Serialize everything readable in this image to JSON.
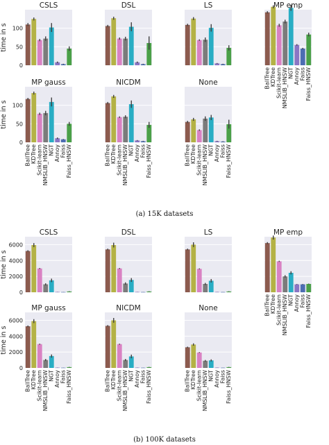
{
  "chart_data": {
    "type": "bar",
    "ylabel": "time in s",
    "colors": [
      "#8c5b4e",
      "#b4b245",
      "#d982c3",
      "#7b7b7b",
      "#29adc4",
      "#8a76c4",
      "#4c6db3",
      "#4aa048"
    ],
    "panels": [
      {
        "caption": "(a) 15K datasets",
        "ylim": [
          0,
          150
        ],
        "yticks": [
          0,
          50,
          100
        ],
        "categories": [
          "BallTree",
          "KDTree",
          "Scikit-learn",
          "NMSLIB_HNSW",
          "NGT",
          "Annoy",
          "Faiss",
          "Faiss_HNSW"
        ],
        "subplots": [
          {
            "title": "CSLS",
            "values": [
              110,
              125,
              68,
              72,
              102,
              8,
              3,
              45
            ],
            "errors": [
              4,
              4,
              3,
              6,
              12,
              2,
              1,
              6
            ]
          },
          {
            "title": "DSL",
            "values": [
              106,
              127,
              72,
              72,
              104,
              8,
              3,
              60
            ],
            "errors": [
              3,
              4,
              3,
              5,
              12,
              2,
              1,
              18
            ]
          },
          {
            "title": "LS",
            "values": [
              109,
              126,
              68,
              69,
              101,
              5,
              3,
              47
            ],
            "errors": [
              3,
              4,
              2,
              6,
              10,
              1,
              1,
              7
            ]
          },
          {
            "title": "MP emp",
            "values": [
              143,
              158,
              108,
              118,
              155,
              55,
              45,
              83
            ],
            "errors": [
              3,
              4,
              4,
              5,
              8,
              2,
              2,
              5
            ]
          },
          {
            "title": "MP gauss",
            "values": [
              117,
              133,
              77,
              79,
              109,
              11,
              8,
              50
            ],
            "errors": [
              3,
              4,
              3,
              6,
              12,
              2,
              1,
              5
            ]
          },
          {
            "title": "NICDM",
            "values": [
              106,
              124,
              68,
              69,
              103,
              5,
              3,
              47
            ],
            "errors": [
              3,
              4,
              2,
              4,
              10,
              1,
              1,
              8
            ]
          },
          {
            "title": "None",
            "values": [
              55,
              62,
              33,
              64,
              67,
              3,
              2,
              49
            ],
            "errors": [
              3,
              4,
              2,
              6,
              7,
              1,
              1,
              12
            ]
          }
        ]
      },
      {
        "caption": "(b) 100K datasets",
        "ylim": [
          0,
          7000
        ],
        "yticks": [
          0,
          2000,
          4000,
          6000
        ],
        "categories": [
          "BallTree",
          "KDTree",
          "Scikit-learn",
          "NMSLIB_HNSW",
          "NGT",
          "Annoy",
          "Faiss",
          "Faiss_HNSW"
        ],
        "subplots": [
          {
            "title": "CSLS",
            "values": [
              5200,
              5950,
              3000,
              1000,
              1500,
              40,
              30,
              100
            ],
            "errors": [
              100,
              250,
              60,
              130,
              220,
              10,
              10,
              30
            ]
          },
          {
            "title": "DSL",
            "values": [
              5400,
              5950,
              3000,
              1100,
              1550,
              40,
              30,
              100
            ],
            "errors": [
              100,
              300,
              60,
              150,
              240,
              10,
              10,
              30
            ]
          },
          {
            "title": "LS",
            "values": [
              5400,
              6000,
              2950,
              1050,
              1450,
              40,
              30,
              100
            ],
            "errors": [
              100,
              300,
              60,
              130,
              220,
              10,
              10,
              30
            ]
          },
          {
            "title": "MP emp",
            "values": [
              6200,
              6900,
              3900,
              2000,
              2450,
              1000,
              1000,
              1050
            ],
            "errors": [
              120,
              250,
              70,
              150,
              200,
              40,
              40,
              40
            ]
          },
          {
            "title": "MP gauss",
            "values": [
              5250,
              5900,
              3000,
              1000,
              1500,
              40,
              30,
              100
            ],
            "errors": [
              100,
              250,
              60,
              130,
              200,
              10,
              10,
              30
            ]
          },
          {
            "title": "NICDM",
            "values": [
              5300,
              6000,
              3000,
              1000,
              1450,
              40,
              30,
              100
            ],
            "errors": [
              100,
              300,
              60,
              130,
              230,
              10,
              10,
              30
            ]
          },
          {
            "title": "None",
            "values": [
              2600,
              2950,
              1950,
              900,
              950,
              40,
              30,
              100
            ],
            "errors": [
              80,
              150,
              50,
              100,
              130,
              10,
              10,
              30
            ]
          }
        ]
      }
    ]
  }
}
